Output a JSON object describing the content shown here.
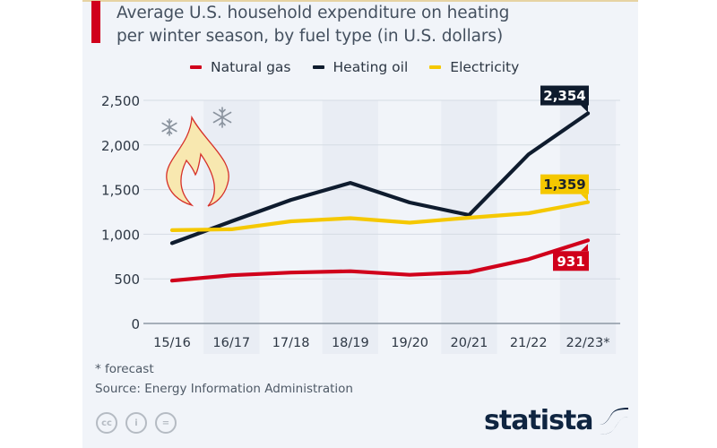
{
  "title_lines": [
    "Average U.S. household expenditure on heating",
    "per winter season, by fuel type (in U.S. dollars)"
  ],
  "colors": {
    "natural_gas": "#d0001b",
    "heating_oil": "#0f1c2e",
    "electricity": "#f5c800",
    "accent": "#d0001b"
  },
  "footnote": "* forecast",
  "source": "Source: Energy Information Administration",
  "license_icons": [
    "cc-icon",
    "by-icon",
    "nd-icon"
  ],
  "license_labels": [
    "cc",
    "i",
    "="
  ],
  "brand": "statista",
  "chart_data": {
    "type": "line",
    "title": "Average U.S. household expenditure on heating per winter season, by fuel type (in U.S. dollars)",
    "xlabel": "",
    "ylabel": "",
    "x": [
      "15/16",
      "16/17",
      "17/18",
      "18/19",
      "19/20",
      "20/21",
      "21/22",
      "22/23*"
    ],
    "ylim": [
      0,
      2500
    ],
    "yticks": [
      0,
      500,
      1000,
      1500,
      2000,
      2500
    ],
    "ytick_labels": [
      "0",
      "500",
      "1,000",
      "1,500",
      "2,000",
      "2,500"
    ],
    "grid": true,
    "legend_position": "top-right",
    "series": [
      {
        "name": "Natural gas",
        "key": "natural_gas",
        "values": [
          480,
          540,
          570,
          585,
          545,
          575,
          720,
          931
        ],
        "end_label": "931"
      },
      {
        "name": "Heating oil",
        "key": "heating_oil",
        "values": [
          900,
          1145,
          1385,
          1575,
          1355,
          1215,
          1895,
          2354
        ],
        "end_label": "2,354"
      },
      {
        "name": "Electricity",
        "key": "electricity",
        "values": [
          1045,
          1055,
          1145,
          1180,
          1130,
          1185,
          1235,
          1359
        ],
        "end_label": "1,359"
      }
    ]
  }
}
